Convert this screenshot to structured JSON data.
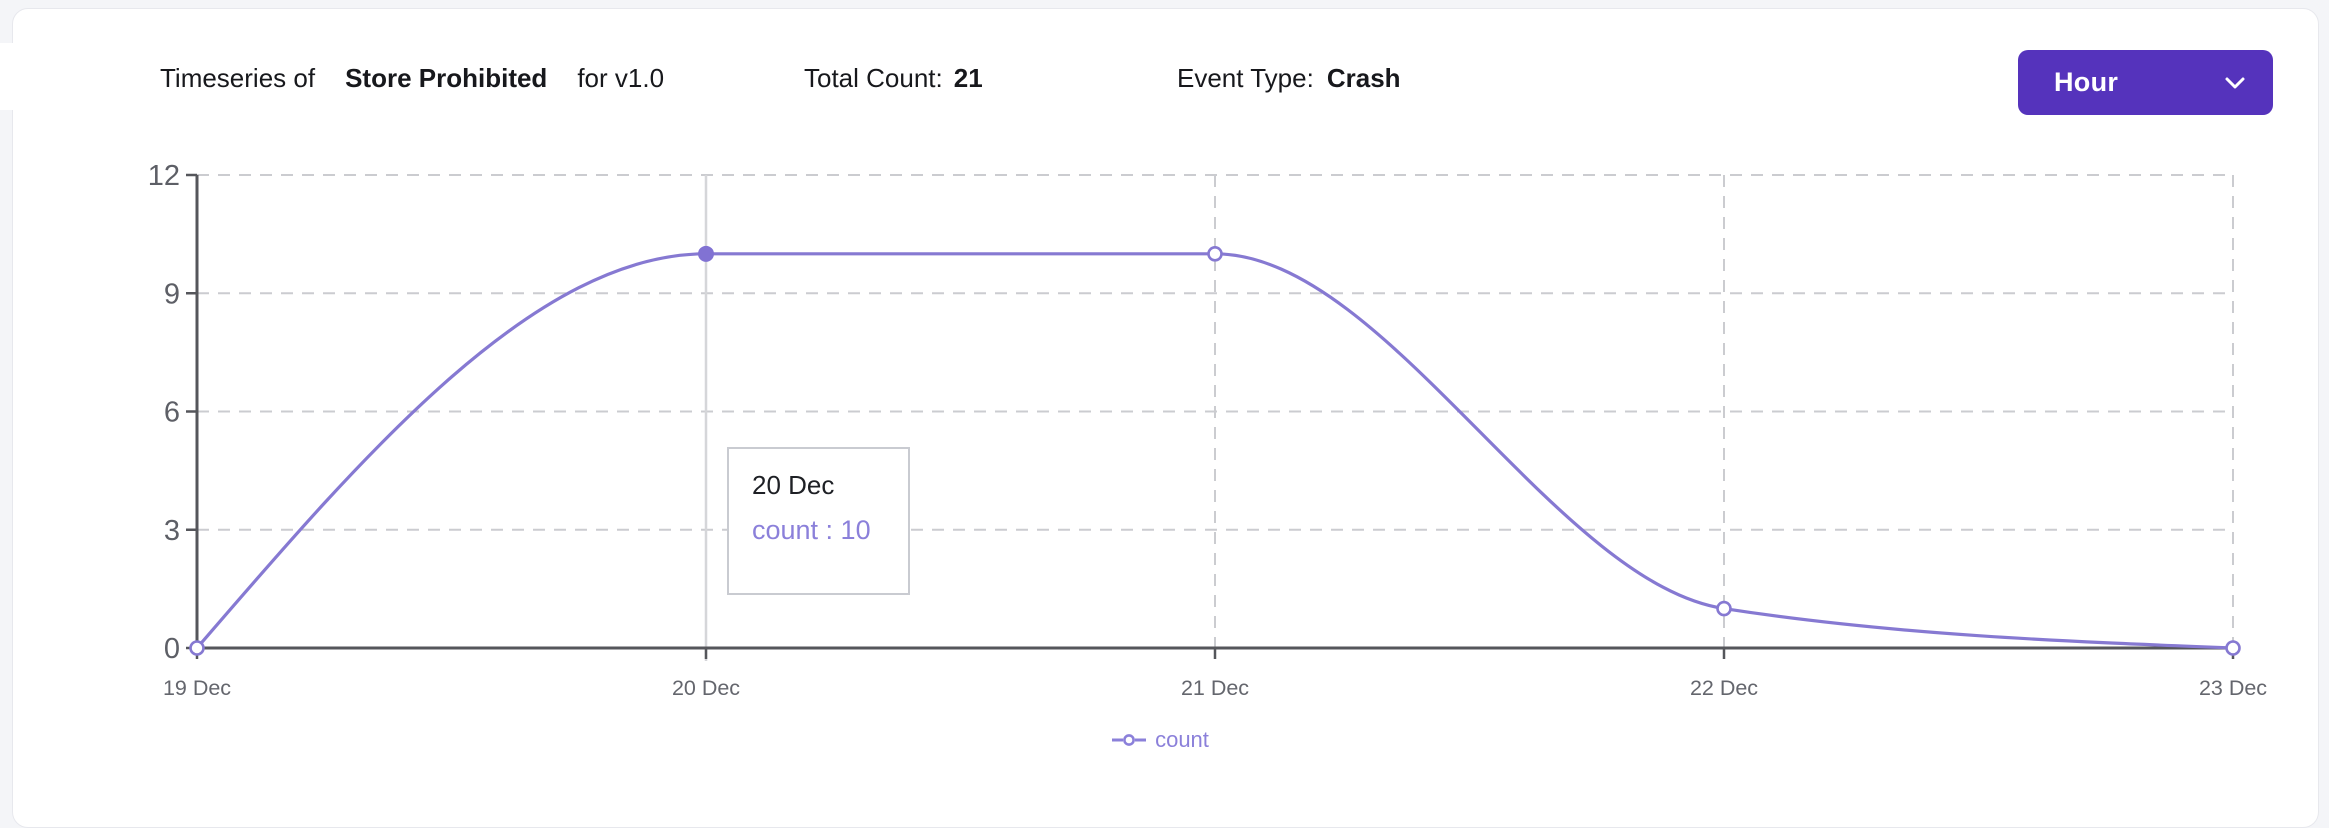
{
  "header": {
    "title_prefix": "Timeseries of",
    "title_name": "Store Prohibited",
    "title_suffix": "for v1.0",
    "total_count_label": "Total Count:",
    "total_count_value": "21",
    "event_type_label": "Event Type:",
    "event_type_value": "Crash",
    "interval_dropdown": {
      "selected": "Hour",
      "icon": "chevron-down-icon"
    }
  },
  "chart_data": {
    "type": "line",
    "title": "Timeseries of Store Prohibited for v1.0",
    "categories": [
      "19 Dec",
      "20 Dec",
      "21 Dec",
      "22 Dec",
      "23 Dec"
    ],
    "series": [
      {
        "name": "count",
        "values": [
          0,
          10,
          10,
          1,
          0
        ]
      }
    ],
    "xlabel": "",
    "ylabel": "",
    "ylim": [
      0,
      12
    ],
    "yticks": [
      0,
      3,
      6,
      9,
      12
    ],
    "grid": "dashed",
    "curve": "monotone",
    "legend_position": "bottom",
    "active_point": {
      "category_index": 1,
      "category": "20 Dec",
      "series": "count",
      "value": 10
    }
  },
  "tooltip": {
    "title": "20 Dec",
    "entry": "count : 10"
  },
  "legend": {
    "items": [
      {
        "label": "count"
      }
    ]
  },
  "colors": {
    "accent": "#5533bc",
    "line": "#8679d2",
    "active_dot": "#8172d3",
    "purple_text": "#8b80da",
    "axis": "#55565b",
    "grid": "#cbccd0",
    "crosshair": "#d5d6d9",
    "y_tick_label": "#5d5f66",
    "x_tick_label": "#64666d"
  }
}
